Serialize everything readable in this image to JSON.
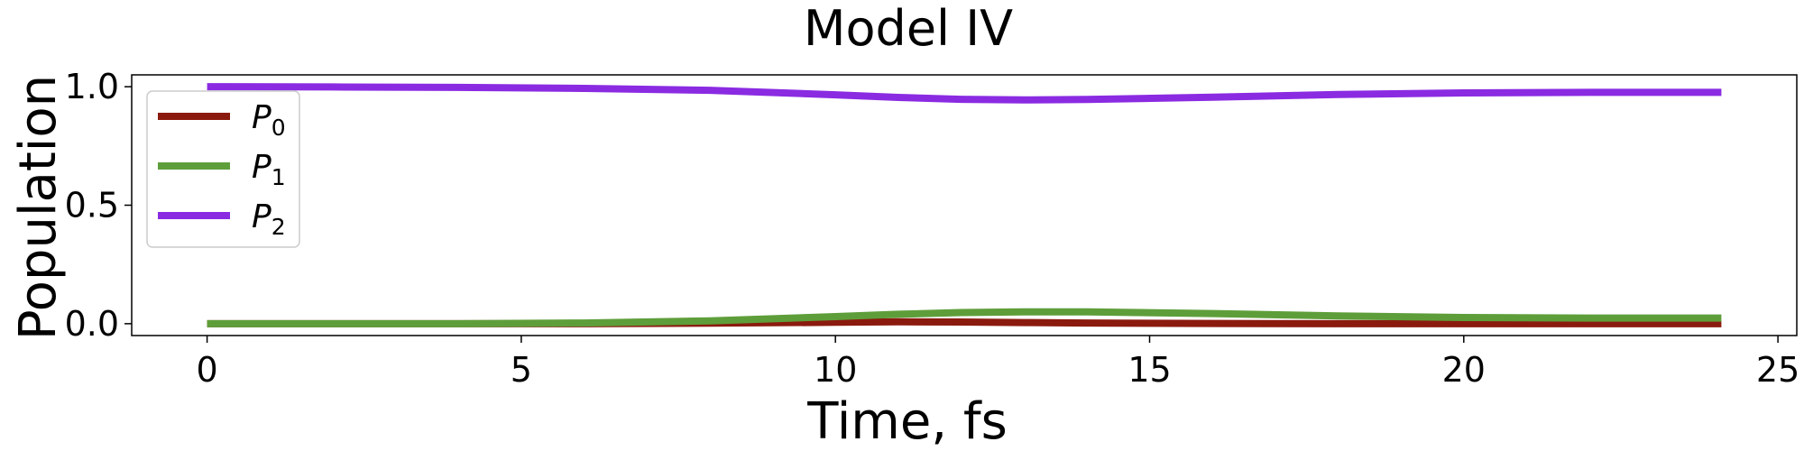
{
  "chart_data": {
    "type": "line",
    "title": "Model IV",
    "xlabel": "Time, fs",
    "ylabel": "Population",
    "xlim": [
      -1.2,
      25.3
    ],
    "ylim": [
      -0.05,
      1.05
    ],
    "xticks": [
      0,
      5,
      10,
      15,
      20,
      25
    ],
    "xtick_labels": [
      "0",
      "5",
      "10",
      "15",
      "20",
      "25"
    ],
    "yticks": [
      0.0,
      0.5,
      1.0
    ],
    "ytick_labels": [
      "0.0",
      "0.5",
      "1.0"
    ],
    "grid": false,
    "legend_position": "upper-left",
    "x": [
      0,
      2,
      4,
      6,
      8,
      10,
      11,
      12,
      13,
      14,
      16,
      18,
      20,
      22,
      24.1
    ],
    "series": [
      {
        "name": "P0",
        "label_base": "P",
        "label_sub": "0",
        "color": "#8b1a0e",
        "values": [
          0.0,
          0.0,
          0.0,
          0.0,
          0.002,
          0.006,
          0.008,
          0.007,
          0.005,
          0.003,
          0.001,
          0.0,
          0.0,
          0.0,
          0.0
        ]
      },
      {
        "name": "P1",
        "label_base": "P",
        "label_sub": "1",
        "color": "#5e9e3a",
        "values": [
          0.0,
          0.0,
          0.0,
          0.003,
          0.012,
          0.03,
          0.04,
          0.047,
          0.05,
          0.05,
          0.043,
          0.033,
          0.026,
          0.024,
          0.024
        ]
      },
      {
        "name": "P2",
        "label_base": "P",
        "label_sub": "2",
        "color": "#8a2be2",
        "values": [
          1.0,
          0.999,
          0.997,
          0.993,
          0.985,
          0.966,
          0.955,
          0.947,
          0.944,
          0.946,
          0.956,
          0.967,
          0.974,
          0.976,
          0.976
        ]
      }
    ]
  }
}
